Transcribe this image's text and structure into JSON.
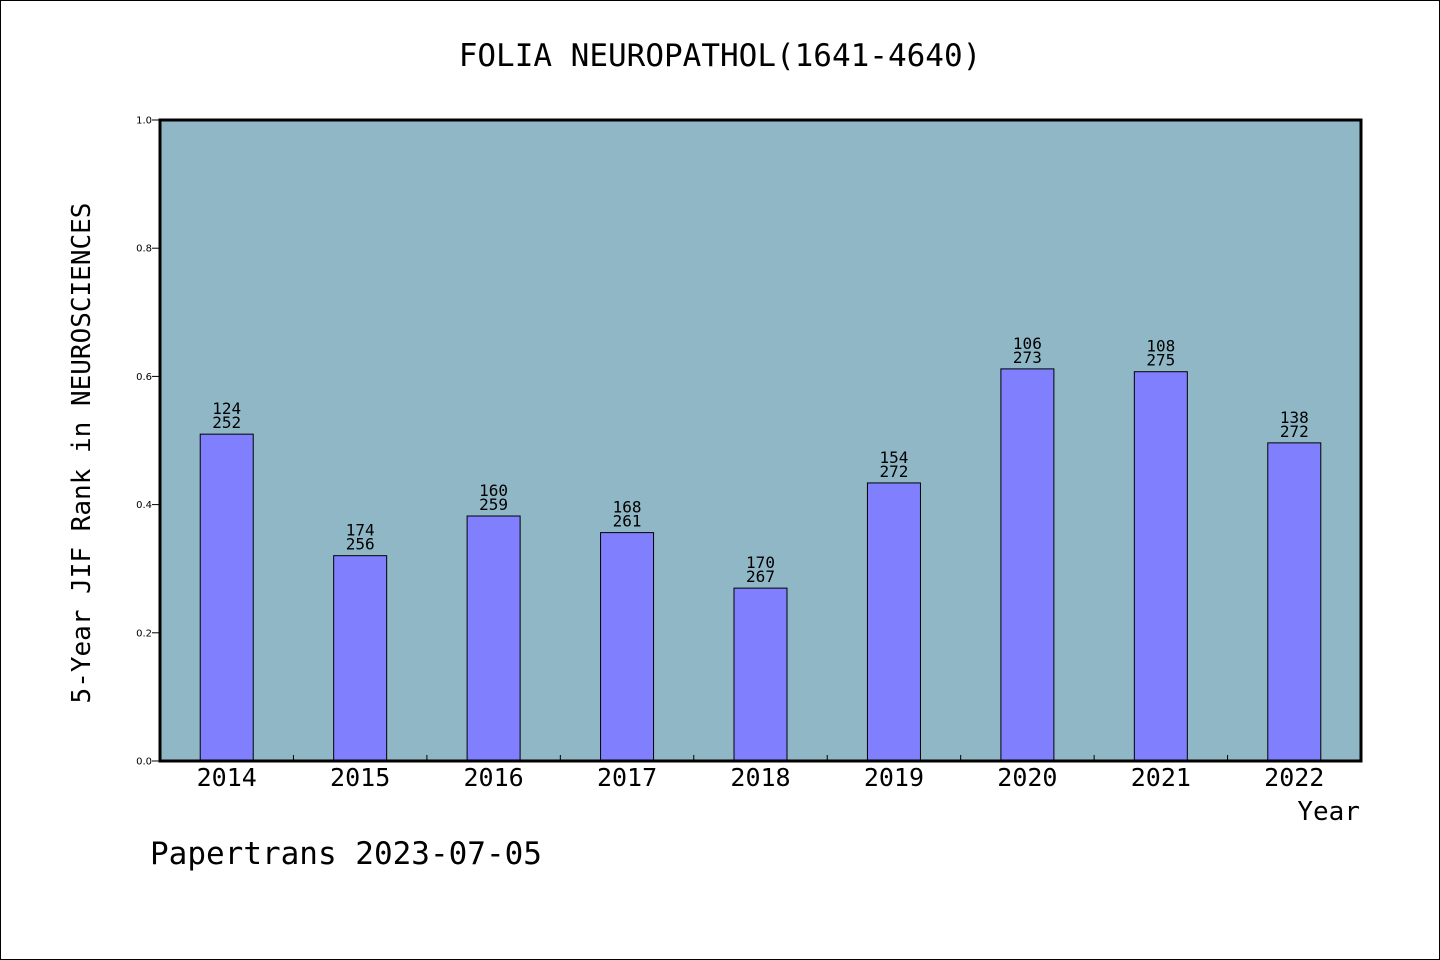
{
  "chart_data": {
    "type": "bar",
    "title": "FOLIA NEUROPATHOL(1641-4640)",
    "xlabel": "Year",
    "ylabel": "5-Year JIF Rank in NEUROSCIENCES",
    "categories": [
      "2014",
      "2015",
      "2016",
      "2017",
      "2018",
      "2019",
      "2020",
      "2021",
      "2022"
    ],
    "values": [
      0.5099,
      0.3203,
      0.3822,
      0.3563,
      0.2697,
      0.4338,
      0.6117,
      0.6073,
      0.4963
    ],
    "ranks": [
      "124",
      "174",
      "160",
      "168",
      "170",
      "154",
      "106",
      "108",
      "138"
    ],
    "totals": [
      "252",
      "256",
      "259",
      "261",
      "267",
      "272",
      "273",
      "275",
      "272"
    ],
    "ylim": [
      0,
      1.0
    ],
    "yticks": [
      "0.0",
      "0.2",
      "0.4",
      "0.6",
      "0.8",
      "1.0"
    ],
    "grid": false,
    "colors": {
      "plot_background": "#8fb7c6",
      "bar_fill": "#8080ff",
      "bar_stroke": "#000000"
    }
  },
  "footer": {
    "credit": "Papertrans 2023-07-05"
  }
}
